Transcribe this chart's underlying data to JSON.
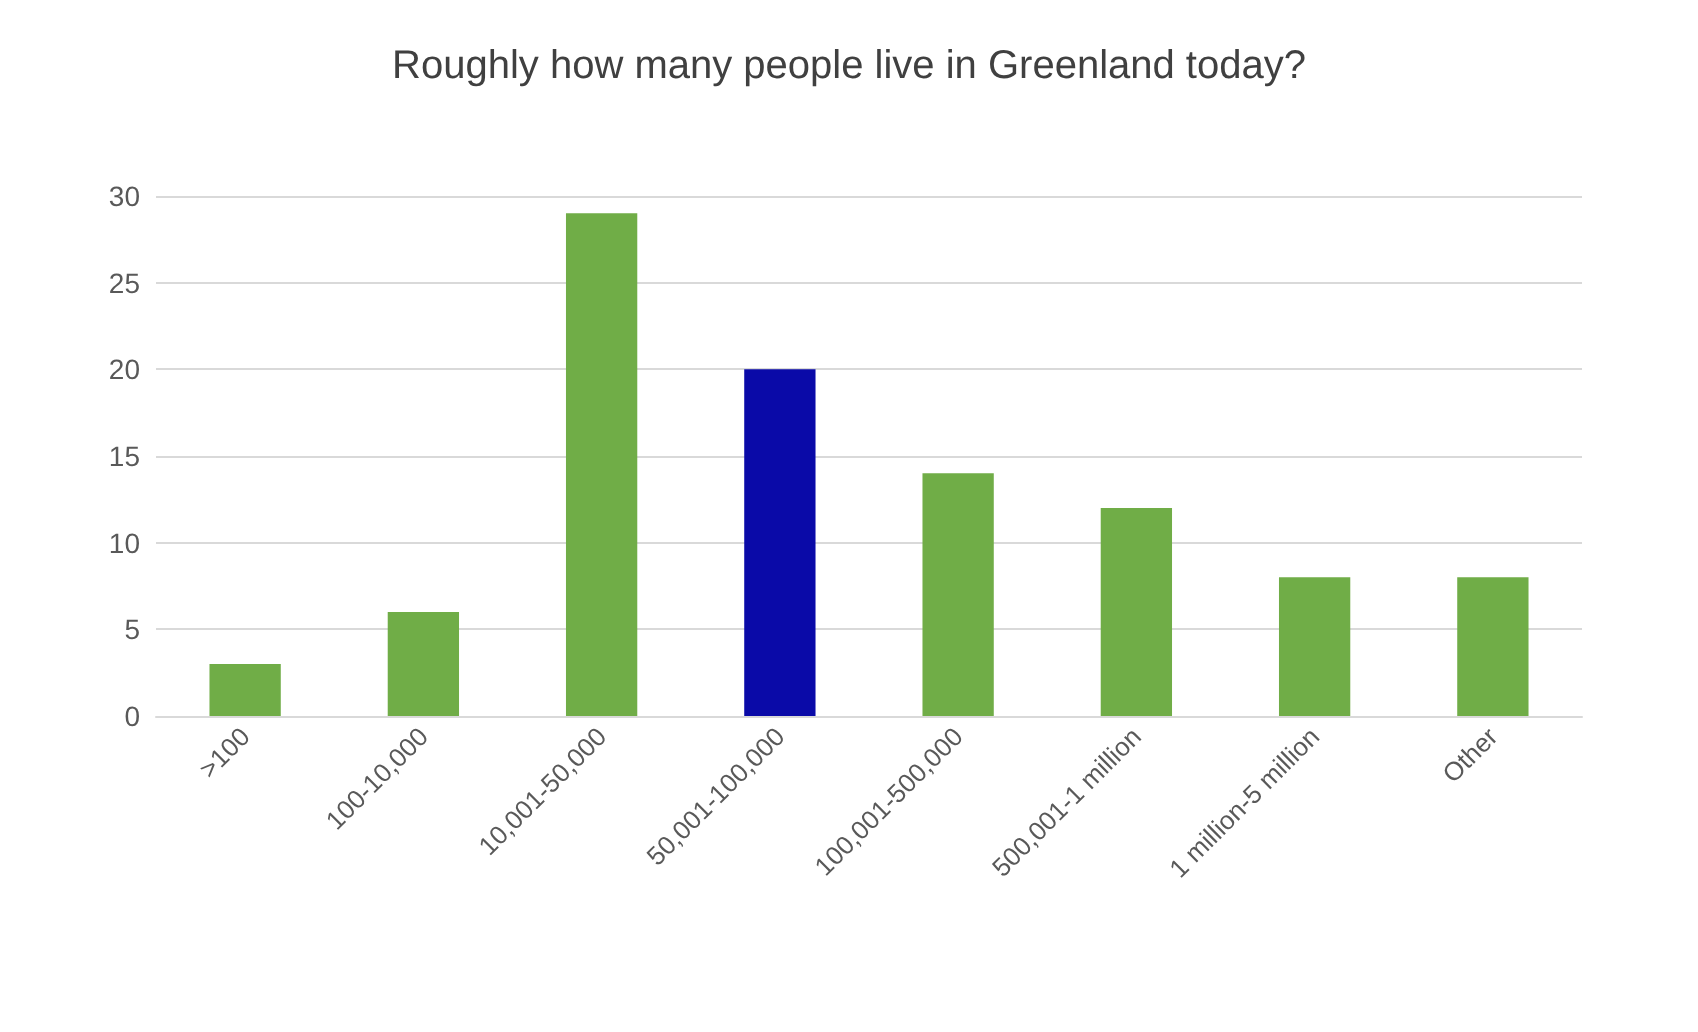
{
  "chart_data": {
    "type": "bar",
    "title": "Roughly how many people live in Greenland today?",
    "categories": [
      ">100",
      "100-10,000",
      "10,001-50,000",
      "50,001-100,000",
      "100,001-500,000",
      "500,001-1 million",
      "1 million-5 million",
      "Other"
    ],
    "values": [
      3,
      6,
      29,
      20,
      14,
      12,
      8,
      8
    ],
    "colors": [
      "#70ad47",
      "#70ad47",
      "#70ad47",
      "#0a0aa8",
      "#70ad47",
      "#70ad47",
      "#70ad47",
      "#70ad47"
    ],
    "ylim": [
      0,
      30
    ],
    "yticks": [
      0,
      5,
      10,
      15,
      20,
      25,
      30
    ],
    "grid": "y"
  }
}
